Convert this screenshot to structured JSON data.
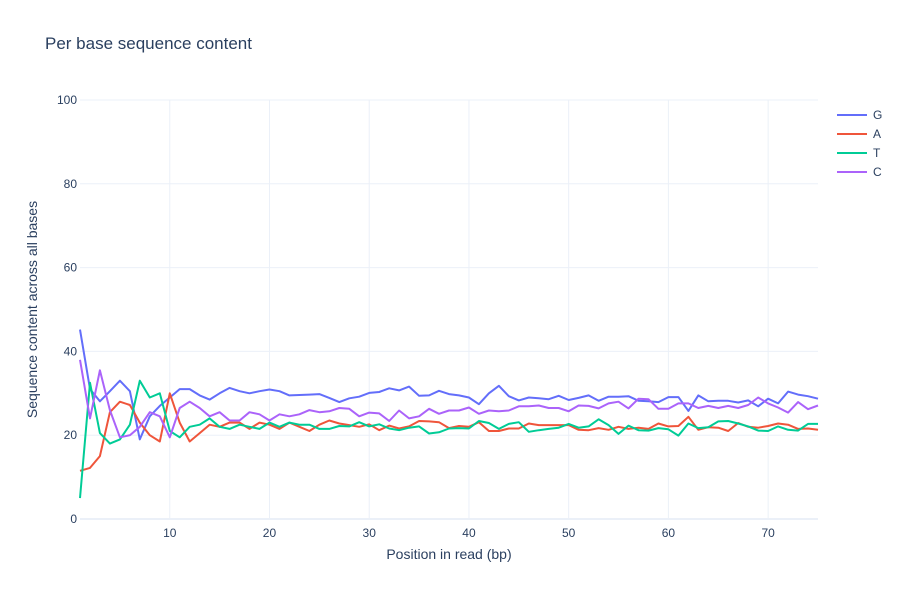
{
  "chart_data": {
    "type": "line",
    "title": "Per base sequence content",
    "xlabel": "Position in read (bp)",
    "ylabel": "Sequence content across all bases",
    "xlim": [
      1,
      75
    ],
    "ylim": [
      0,
      100
    ],
    "x_ticks": [
      10,
      20,
      30,
      40,
      50,
      60,
      70
    ],
    "y_ticks": [
      0,
      20,
      40,
      60,
      80,
      100
    ],
    "grid": true,
    "legend_position": "top-right",
    "x": [
      1,
      2,
      3,
      4,
      5,
      6,
      7,
      8,
      9,
      10,
      11,
      12,
      13,
      14,
      15,
      16,
      17,
      18,
      19,
      20,
      21,
      22,
      23,
      24,
      25,
      26,
      27,
      28,
      29,
      30,
      31,
      32,
      33,
      34,
      35,
      36,
      37,
      38,
      39,
      40,
      41,
      42,
      43,
      44,
      45,
      46,
      47,
      48,
      49,
      50,
      51,
      52,
      53,
      54,
      55,
      56,
      57,
      58,
      59,
      60,
      61,
      62,
      63,
      64,
      65,
      66,
      67,
      68,
      69,
      70,
      71,
      72,
      73,
      74,
      75
    ],
    "series": [
      {
        "name": "G",
        "color": "#636efa",
        "values": [
          45.2,
          31.0,
          28.1,
          30.5,
          33.0,
          30.5,
          19.0,
          24.5,
          27.0,
          29.0,
          31.0,
          31.0,
          29.5,
          28.5,
          30.0,
          31.3,
          30.5,
          30.0,
          30.5,
          30.9,
          30.5,
          29.5,
          29.6,
          29.7,
          29.8,
          28.9,
          27.9,
          28.8,
          29.2,
          30.1,
          30.3,
          31.2,
          30.7,
          31.6,
          29.4,
          29.5,
          30.6,
          29.8,
          29.5,
          29.0,
          27.4,
          30.0,
          31.8,
          29.3,
          28.3,
          29.0,
          28.8,
          28.6,
          29.4,
          28.4,
          28.9,
          29.5,
          28.2,
          29.2,
          29.2,
          29.3,
          28.2,
          28.1,
          27.9,
          29.1,
          29.1,
          25.8,
          29.5,
          28.1,
          28.2,
          28.2,
          27.8,
          28.3,
          26.9,
          28.7,
          27.6,
          30.4,
          29.7,
          29.3,
          28.7
        ]
      },
      {
        "name": "A",
        "color": "#ef553b",
        "values": [
          11.5,
          12.2,
          15.0,
          25.5,
          28.0,
          27.2,
          23.0,
          20.0,
          18.5,
          30.0,
          23.0,
          18.5,
          20.5,
          22.5,
          22.0,
          23.0,
          23.0,
          21.5,
          23.0,
          22.5,
          21.5,
          23.0,
          22.0,
          21.0,
          22.5,
          23.5,
          22.8,
          22.4,
          22.0,
          22.6,
          21.2,
          22.3,
          21.6,
          22.1,
          23.4,
          23.3,
          23.1,
          21.7,
          22.2,
          22.0,
          23.1,
          21.0,
          21.0,
          21.6,
          21.6,
          22.8,
          22.4,
          22.4,
          22.4,
          22.4,
          21.3,
          21.2,
          21.7,
          21.3,
          22.0,
          21.5,
          21.8,
          21.5,
          22.8,
          22.1,
          22.2,
          24.4,
          21.3,
          21.9,
          21.8,
          21.0,
          22.9,
          22.0,
          21.8,
          22.2,
          22.8,
          22.5,
          21.5,
          21.6,
          21.3
        ]
      },
      {
        "name": "T",
        "color": "#00cc96",
        "values": [
          5.0,
          32.5,
          20.5,
          18.0,
          19.0,
          22.5,
          33.0,
          29.0,
          30.0,
          21.0,
          19.5,
          22.0,
          22.5,
          24.0,
          22.0,
          21.5,
          22.5,
          22.0,
          21.5,
          23.0,
          22.0,
          23.0,
          22.5,
          22.5,
          21.5,
          21.5,
          22.2,
          22.1,
          23.1,
          22.1,
          22.6,
          21.6,
          21.2,
          21.8,
          22.1,
          20.4,
          20.7,
          21.6,
          21.7,
          21.6,
          23.4,
          22.9,
          21.5,
          22.7,
          23.1,
          20.8,
          21.2,
          21.5,
          21.8,
          22.7,
          21.8,
          22.1,
          23.8,
          22.4,
          20.3,
          22.3,
          21.2,
          21.1,
          21.7,
          21.4,
          19.9,
          22.8,
          21.7,
          21.9,
          23.3,
          23.4,
          22.8,
          22.1,
          21.1,
          21.0,
          22.1,
          21.3,
          21.1,
          22.7,
          22.7
        ]
      },
      {
        "name": "C",
        "color": "#ab63fa",
        "values": [
          38.0,
          24.0,
          35.5,
          26.0,
          19.5,
          20.0,
          22.0,
          25.5,
          24.5,
          19.5,
          26.5,
          28.0,
          26.5,
          24.5,
          25.5,
          23.5,
          23.5,
          25.5,
          25.0,
          23.5,
          25.0,
          24.5,
          25.0,
          26.0,
          25.5,
          25.7,
          26.5,
          26.3,
          24.5,
          25.4,
          25.2,
          23.4,
          25.9,
          24.0,
          24.5,
          26.3,
          25.1,
          25.9,
          25.9,
          26.6,
          25.1,
          25.9,
          25.7,
          25.9,
          26.9,
          26.9,
          27.1,
          26.5,
          26.5,
          25.7,
          27.1,
          27.0,
          26.4,
          27.6,
          28.0,
          26.4,
          28.7,
          28.6,
          26.3,
          26.3,
          27.6,
          27.6,
          26.5,
          27.0,
          26.5,
          27.0,
          26.5,
          27.2,
          29.0,
          27.6,
          26.6,
          25.4,
          27.9,
          26.2,
          27.1
        ]
      }
    ]
  }
}
